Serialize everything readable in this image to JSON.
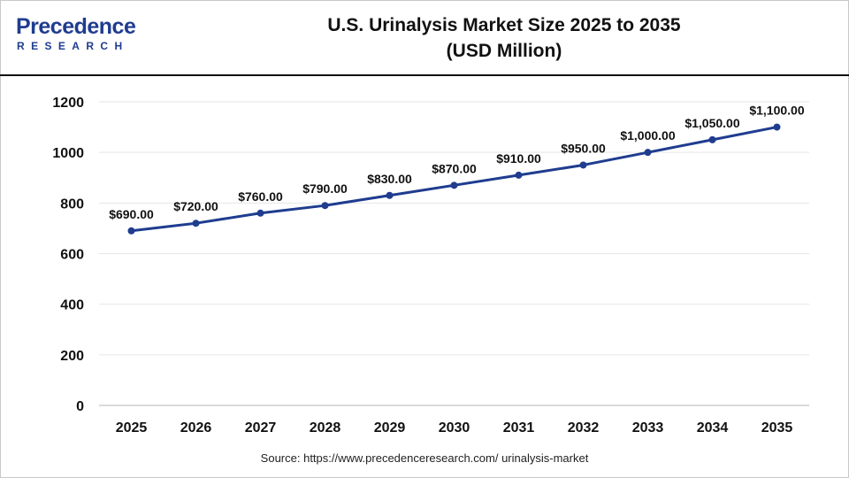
{
  "header": {
    "logo_word": "Precedence",
    "logo_sub": "RESEARCH",
    "title_line1": "U.S. Urinalysis Market Size 2025 to 2035",
    "title_line2": "(USD Million)"
  },
  "source": "Source: https://www.precedenceresearch.com/ urinalysis-market",
  "colors": {
    "line": "#1f3c8f",
    "marker": "#1f3c8f",
    "logo": "#1f3c8f",
    "grid": "#e6e6e6"
  },
  "chart_data": {
    "type": "line",
    "title": "U.S. Urinalysis Market Size 2025 to 2035 (USD Million)",
    "xlabel": "",
    "ylabel": "",
    "categories": [
      "2025",
      "2026",
      "2027",
      "2028",
      "2029",
      "2030",
      "2031",
      "2032",
      "2033",
      "2034",
      "2035"
    ],
    "series": [
      {
        "values": [
          690,
          720,
          760,
          790,
          830,
          870,
          910,
          950,
          1000,
          1050,
          1100
        ],
        "labels": [
          "$690.00",
          "$720.00",
          "$760.00",
          "$790.00",
          "$830.00",
          "$870.00",
          "$910.00",
          "$950.00",
          "$1,000.00",
          "$1,050.00",
          "$1,100.00"
        ]
      }
    ],
    "ylim": [
      0,
      1200
    ],
    "yticks": [
      "0",
      "200",
      "400",
      "600",
      "800",
      "1000",
      "1200"
    ],
    "grid": true,
    "legend": "none"
  }
}
